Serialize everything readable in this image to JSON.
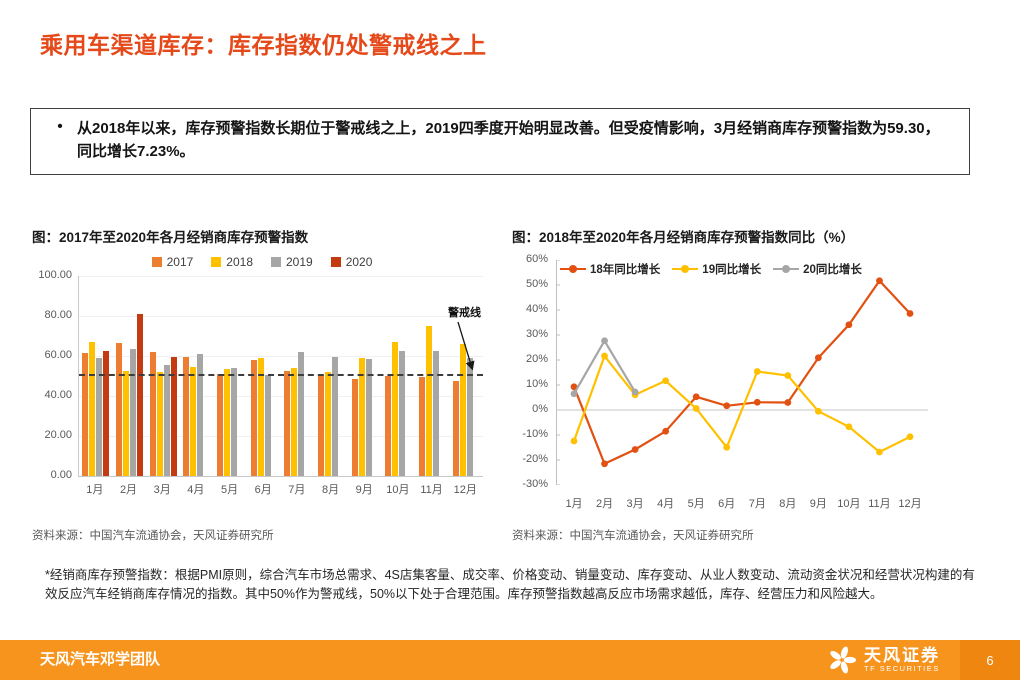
{
  "page": {
    "title": "乘用车渠道库存：库存指数仍处警戒线之上",
    "callout": {
      "bullet": "•",
      "text": "从2018年以来，库存预警指数长期位于警戒线之上，2019四季度开始明显改善。但受疫情影响，3月经销商库存预警指数为59.30，同比增长7.23%。"
    },
    "footnote": "*经销商库存预警指数：根据PMI原则，综合汽车市场总需求、4S店集客量、成交率、价格变动、销量变动、库存变动、从业人数变动、流动资金状况和经营状况构建的有效反应汽车经销商库存情况的指数。其中50%作为警戒线，50%以下处于合理范围。库存预警指数越高反应市场需求越低，库存、经营压力和风险越大。",
    "footer": {
      "team": "天风汽车邓学团队",
      "brand": "天风证券",
      "brand_sub": "TF SECURITIES",
      "page_number": "6"
    },
    "colors": {
      "accent": "#E5491A",
      "footer_bar": "#F7941D"
    }
  },
  "chart_data": [
    {
      "type": "bar",
      "title": "图：2017年至2020年各月经销商库存预警指数",
      "categories": [
        "1月",
        "2月",
        "3月",
        "4月",
        "5月",
        "6月",
        "7月",
        "8月",
        "9月",
        "10月",
        "11月",
        "12月"
      ],
      "series": [
        {
          "name": "2017",
          "color": "#ED7D31",
          "values": [
            61.5,
            66.6,
            61.9,
            59.7,
            51.0,
            58.2,
            52.3,
            50.7,
            48.7,
            49.9,
            49.5,
            47.7
          ]
        },
        {
          "name": "2018",
          "color": "#FFC000",
          "values": [
            67.2,
            52.3,
            52.1,
            54.6,
            53.7,
            59.2,
            53.9,
            52.2,
            58.9,
            66.9,
            75.1,
            66.1
          ]
        },
        {
          "name": "2019",
          "color": "#A6A6A6",
          "values": [
            58.9,
            63.6,
            55.3,
            61.0,
            54.0,
            50.4,
            62.2,
            59.4,
            58.6,
            62.4,
            62.5,
            59.0
          ]
        },
        {
          "name": "2020",
          "color": "#C43B11",
          "values": [
            62.7,
            81.2,
            59.3,
            null,
            null,
            null,
            null,
            null,
            null,
            null,
            null,
            null
          ]
        }
      ],
      "ylim": [
        0,
        100
      ],
      "yticks": [
        "100.00",
        "80.00",
        "60.00",
        "40.00",
        "20.00",
        "0.00"
      ],
      "warning_line": {
        "value": 50,
        "label": "警戒线"
      },
      "legend_position": "top",
      "grid": false,
      "source": "资料来源：中国汽车流通协会，天风证券研究所"
    },
    {
      "type": "line",
      "title": "图：2018年至2020年各月经销商库存预警指数同比（%）",
      "categories": [
        "1月",
        "2月",
        "3月",
        "4月",
        "5月",
        "6月",
        "7月",
        "8月",
        "9月",
        "10月",
        "11月",
        "12月"
      ],
      "series": [
        {
          "name": "18年同比增长",
          "color": "#E25012",
          "values": [
            9.3,
            -21.5,
            -15.8,
            -8.5,
            5.3,
            1.7,
            3.1,
            3.0,
            20.9,
            34.1,
            51.7,
            38.6
          ]
        },
        {
          "name": "19同比增长",
          "color": "#FFC000",
          "values": [
            -12.4,
            21.6,
            6.1,
            11.7,
            0.6,
            -14.9,
            15.4,
            13.8,
            -0.5,
            -6.7,
            -16.8,
            -10.7
          ]
        },
        {
          "name": "20同比增长",
          "color": "#A6A6A6",
          "values": [
            6.5,
            27.7,
            7.2,
            null,
            null,
            null,
            null,
            null,
            null,
            null,
            null,
            null
          ]
        }
      ],
      "ylim": [
        -30,
        60
      ],
      "yticks": [
        "60%",
        "50%",
        "40%",
        "30%",
        "20%",
        "10%",
        "0%",
        "-10%",
        "-20%",
        "-30%"
      ],
      "legend_position": "top-inside",
      "grid": false,
      "source": "资料来源：中国汽车流通协会，天风证券研究所"
    }
  ]
}
